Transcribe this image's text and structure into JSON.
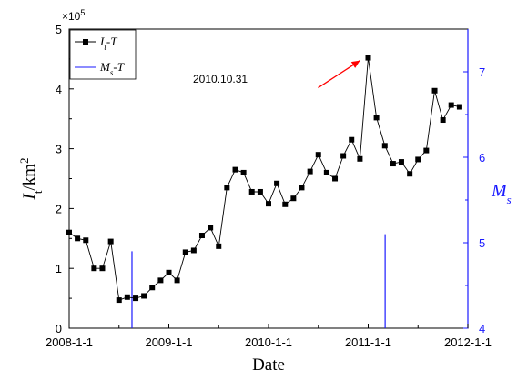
{
  "chart_data": {
    "type": "line",
    "xlabel": "Date",
    "ylabel_base": "I",
    "ylabel_sub": "t",
    "ylabel_rest": "/km",
    "ylabel_sup": "2",
    "y_multiplier_base": "×10",
    "y_multiplier_exp": "5",
    "ylim": [
      0,
      5
    ],
    "y_ticks": [
      "0",
      "1",
      "2",
      "3",
      "4",
      "5"
    ],
    "x_ticks": [
      "2008-1-1",
      "2009-1-1",
      "2010-1-1",
      "2011-1-1",
      "2012-1-1"
    ],
    "xlim": [
      2008.0,
      2012.0
    ],
    "right_axis": {
      "label_base": "M",
      "label_sub": "s",
      "ylim": [
        4,
        7.5
      ],
      "ticks": [
        "4",
        "5",
        "6",
        "7"
      ],
      "color": "#1a1aff"
    },
    "series": [
      {
        "name_base": "I",
        "name_sub": "t",
        "name_rest": "-T",
        "color": "#000000",
        "x": [
          2008.0,
          2008.083,
          2008.167,
          2008.25,
          2008.333,
          2008.417,
          2008.5,
          2008.583,
          2008.667,
          2008.75,
          2008.833,
          2008.917,
          2009.0,
          2009.083,
          2009.167,
          2009.25,
          2009.333,
          2009.417,
          2009.5,
          2009.583,
          2009.667,
          2009.75,
          2009.833,
          2009.917,
          2010.0,
          2010.083,
          2010.167,
          2010.25,
          2010.333,
          2010.417,
          2010.5,
          2010.583,
          2010.667,
          2010.75,
          2010.833,
          2010.917,
          2011.0,
          2011.083,
          2011.167,
          2011.25,
          2011.333,
          2011.417,
          2011.5,
          2011.583,
          2011.667,
          2011.75,
          2011.833,
          2011.917
        ],
        "values": [
          1.6,
          1.5,
          1.47,
          1.0,
          1.0,
          1.45,
          0.47,
          0.52,
          0.5,
          0.54,
          0.68,
          0.8,
          0.93,
          0.8,
          1.27,
          1.3,
          1.55,
          1.68,
          1.37,
          2.35,
          2.65,
          2.6,
          2.28,
          2.28,
          2.08,
          2.42,
          2.07,
          2.17,
          2.35,
          2.62,
          2.9,
          2.6,
          2.5,
          2.88,
          3.15,
          2.83,
          4.52,
          3.52,
          3.05,
          2.75,
          2.78,
          2.58,
          2.82,
          2.97,
          3.97,
          3.48,
          3.73,
          3.7
        ]
      },
      {
        "name_base": "M",
        "name_sub": "s",
        "name_rest": "-T",
        "color": "#1a1aff",
        "events": [
          {
            "x": 2008.63,
            "magnitude": 4.9
          },
          {
            "x": 2011.17,
            "magnitude": 5.1
          }
        ]
      }
    ],
    "annotations": [
      {
        "text": "2010.10.31",
        "target_x": 2011.0,
        "target_y": 4.52,
        "arrow_color": "#ff0000"
      }
    ],
    "legend_position": "top-left",
    "grid": false
  }
}
